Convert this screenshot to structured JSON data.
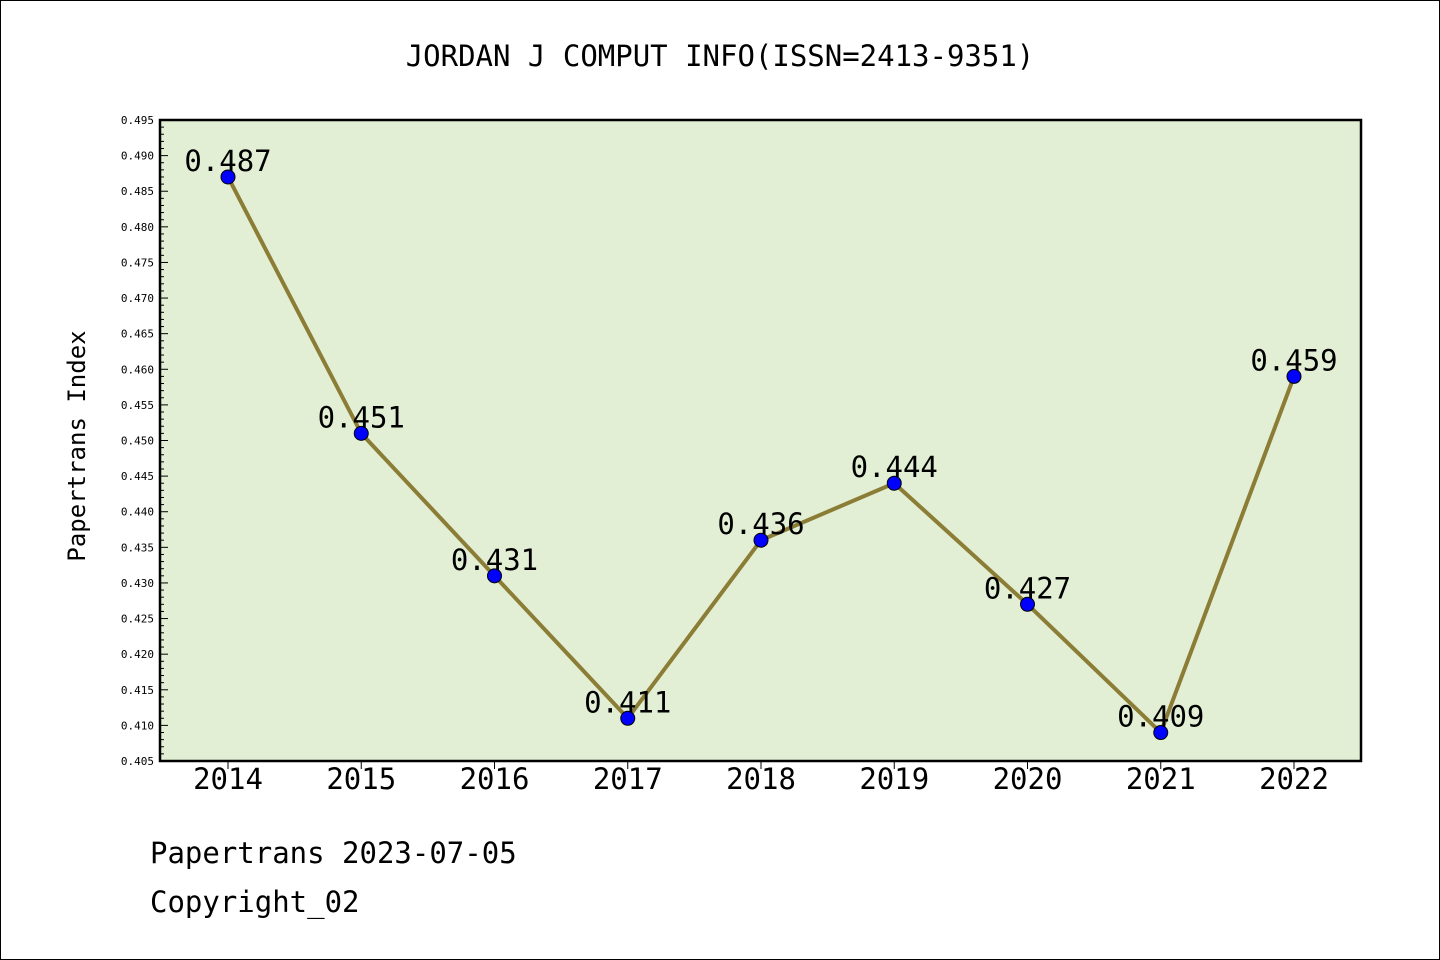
{
  "footer": {
    "line1": "Papertrans 2023-07-05",
    "line2": "Copyright_02"
  },
  "chart_data": {
    "type": "line",
    "title": "JORDAN J COMPUT INFO(ISSN=2413-9351)",
    "xlabel": "",
    "ylabel": "Papertrans Index",
    "categories": [
      "2014",
      "2015",
      "2016",
      "2017",
      "2018",
      "2019",
      "2020",
      "2021",
      "2022"
    ],
    "series": [
      {
        "values": [
          0.487,
          0.451,
          0.431,
          0.411,
          0.436,
          0.444,
          0.427,
          0.409,
          0.459
        ]
      }
    ],
    "data_labels": [
      "0.487",
      "0.451",
      "0.431",
      "0.411",
      "0.436",
      "0.444",
      "0.427",
      "0.409",
      "0.459"
    ],
    "ylim": [
      0.405,
      0.495
    ],
    "yticks": [
      "0.405",
      "0.410",
      "0.415",
      "0.420",
      "0.425",
      "0.430",
      "0.435",
      "0.440",
      "0.445",
      "0.450",
      "0.455",
      "0.460",
      "0.465",
      "0.470",
      "0.475",
      "0.480",
      "0.485",
      "0.490",
      "0.495"
    ],
    "grid": false,
    "colors": {
      "plot_background": "#e2efd5",
      "line": "#8b7d35",
      "marker": "#0000ff"
    }
  }
}
